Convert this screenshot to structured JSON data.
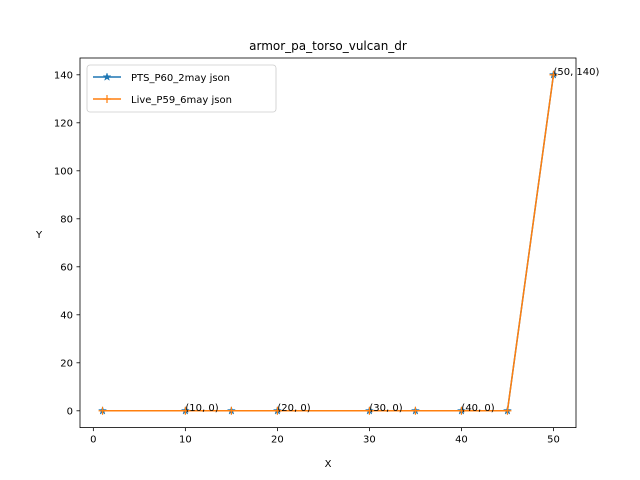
{
  "chart_data": {
    "type": "line",
    "title": "armor_pa_torso_vulcan_dr",
    "xlabel": "X",
    "ylabel": "Y",
    "xlim": [
      -1.45,
      52.45
    ],
    "ylim": [
      -7,
      147
    ],
    "xticks": [
      0,
      10,
      20,
      30,
      40,
      50
    ],
    "yticks": [
      0,
      20,
      40,
      60,
      80,
      100,
      120,
      140
    ],
    "grid": false,
    "legend_position": "upper-left",
    "series": [
      {
        "name": "PTS_P60_2may json",
        "color": "#1f77b4",
        "marker": "star",
        "x": [
          1,
          10,
          15,
          20,
          30,
          35,
          40,
          45,
          50
        ],
        "y": [
          0,
          0,
          0,
          0,
          0,
          0,
          0,
          0,
          140
        ]
      },
      {
        "name": "Live_P59_6may json",
        "color": "#ff7f0e",
        "marker": "plus",
        "x": [
          1,
          10,
          15,
          20,
          30,
          35,
          40,
          45,
          50
        ],
        "y": [
          0,
          0,
          0,
          0,
          0,
          0,
          0,
          0,
          140
        ]
      }
    ],
    "annotations": [
      {
        "x": 10,
        "y": 0,
        "text": "(10, 0)"
      },
      {
        "x": 20,
        "y": 0,
        "text": "(20, 0)"
      },
      {
        "x": 30,
        "y": 0,
        "text": "(30, 0)"
      },
      {
        "x": 40,
        "y": 0,
        "text": "(40, 0)"
      },
      {
        "x": 50,
        "y": 140,
        "text": "(50, 140)"
      }
    ]
  }
}
